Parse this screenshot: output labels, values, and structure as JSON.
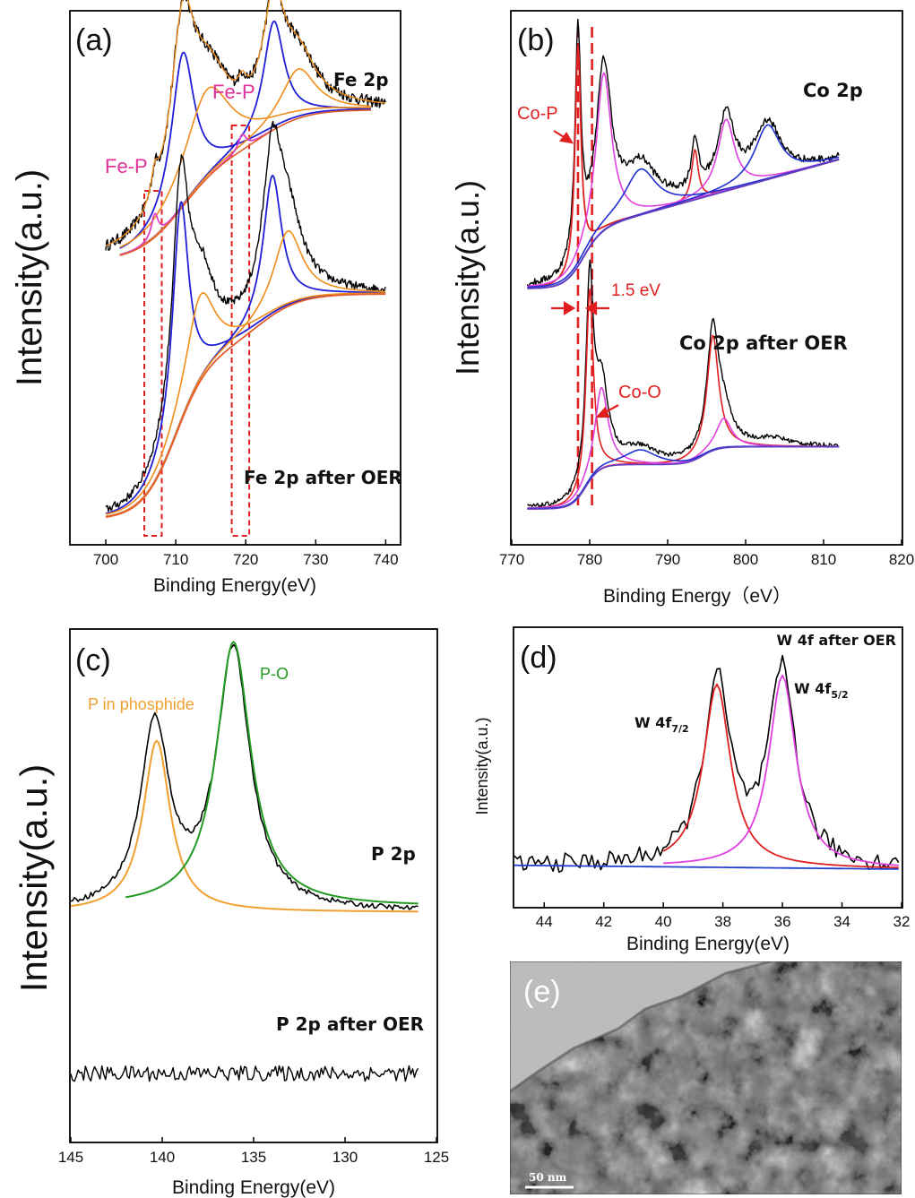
{
  "chart_data": [
    {
      "panel": "(a)",
      "type": "line",
      "xlabel": "Binding Energy(eV)",
      "ylabel": "Intensity(a.u.)",
      "xlim": [
        695,
        742
      ],
      "xticks": [
        700,
        710,
        720,
        730,
        740
      ],
      "annotations": [
        "Fe 2p",
        "Fe 2p after OER",
        "Fe-P",
        "Fe-P"
      ],
      "highlight_regions_ev": [
        [
          705.5,
          708.0
        ],
        [
          718.0,
          720.5
        ]
      ],
      "colors": {
        "raw": "#000000",
        "fit_a": "#1f1fd6",
        "fit_b": "#f08c1a",
        "fit_c": "#e040c0",
        "background": "#e35c2a",
        "highlight": "#e02020"
      },
      "series": [
        {
          "name": "Fe 2p",
          "peaks": [
            {
              "x": 707.0,
              "component": "Fe-P"
            },
            {
              "x": 711.0
            },
            {
              "x": 714.5
            },
            {
              "x": 719.5,
              "component": "Fe-P"
            },
            {
              "x": 724.0
            },
            {
              "x": 727.5
            }
          ]
        },
        {
          "name": "Fe 2p after OER",
          "peaks": [
            {
              "x": 710.7
            },
            {
              "x": 713.5
            },
            {
              "x": 723.8
            },
            {
              "x": 726.0
            }
          ]
        }
      ]
    },
    {
      "panel": "(b)",
      "type": "line",
      "xlabel": "Binding Energy（eV）",
      "ylabel": "Intensity(a.u.)",
      "xlim": [
        770,
        820
      ],
      "xticks": [
        770,
        780,
        790,
        800,
        810,
        820
      ],
      "annotations": [
        "Co 2p",
        "Co 2p after OER",
        "Co-P",
        "Co-O",
        "1.5 eV"
      ],
      "reference_lines_ev": [
        778.5,
        780.3
      ],
      "colors": {
        "raw": "#000000",
        "fit_a": "#e02020",
        "fit_b": "#e040e0",
        "fit_c": "#2030d0",
        "background": "#6040c0",
        "reference": "#e02020"
      },
      "series": [
        {
          "name": "Co 2p",
          "peaks": [
            {
              "x": 778.5,
              "component": "Co-P"
            },
            {
              "x": 781.8
            },
            {
              "x": 786.5
            },
            {
              "x": 793.5
            },
            {
              "x": 797.5
            },
            {
              "x": 802.8
            }
          ]
        },
        {
          "name": "Co 2p after OER",
          "peaks": [
            {
              "x": 780.0
            },
            {
              "x": 781.5,
              "component": "Co-O"
            },
            {
              "x": 786.5
            },
            {
              "x": 795.8
            },
            {
              "x": 797.2
            },
            {
              "x": 803.5
            }
          ]
        }
      ]
    },
    {
      "panel": "(c)",
      "type": "line",
      "xlabel": "Binding Energy(eV)",
      "ylabel": "Intensity(a.u.)",
      "xlim": [
        145,
        125
      ],
      "xticks": [
        145,
        140,
        135,
        130,
        125
      ],
      "annotations": [
        "P 2p",
        "P 2p after OER",
        "P in phosphide",
        "P-O"
      ],
      "colors": {
        "raw": "#000000",
        "fit_phosphide": "#f0a030",
        "fit_po": "#229922"
      },
      "series": [
        {
          "name": "P 2p",
          "peaks": [
            {
              "x": 140.4,
              "component": "P in phosphide"
            },
            {
              "x": 136.1,
              "component": "P-O"
            }
          ]
        },
        {
          "name": "P 2p after OER",
          "peaks": []
        }
      ]
    },
    {
      "panel": "(d)",
      "type": "line",
      "xlabel": "Binding Energy(eV)",
      "ylabel": "Intensity(a.u.)",
      "title": "W 4f after OER",
      "xlim": [
        45,
        32
      ],
      "xticks": [
        44,
        42,
        40,
        38,
        36,
        34,
        32
      ],
      "annotations": [
        {
          "base": "W 4f",
          "sub": "7/2"
        },
        {
          "base": "W 4f",
          "sub": "5/2"
        }
      ],
      "colors": {
        "raw": "#000000",
        "fit_72": "#e02020",
        "fit_52": "#e040e0",
        "background": "#2040d0"
      },
      "series": [
        {
          "name": "W 4f after OER",
          "peaks": [
            {
              "x": 38.2,
              "component": "W 4f7/2"
            },
            {
              "x": 36.0,
              "component": "W 4f5/2"
            }
          ]
        }
      ]
    },
    {
      "panel": "(e)",
      "type": "image",
      "scale_bar": "50 nm"
    }
  ]
}
